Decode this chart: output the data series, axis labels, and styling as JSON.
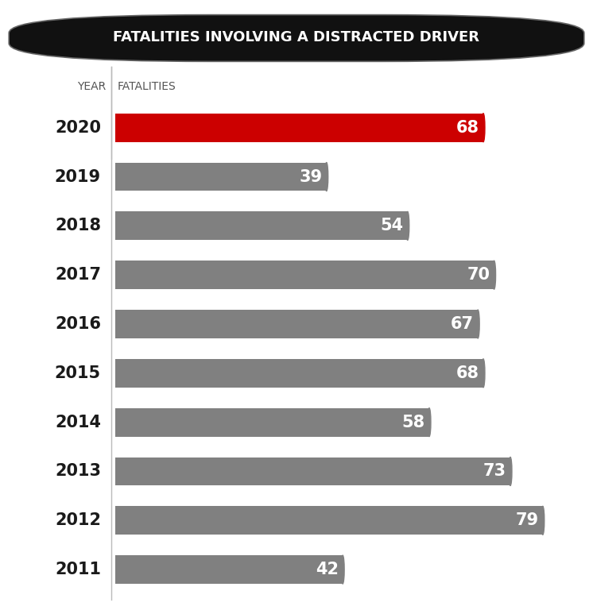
{
  "title": "FATALITIES INVOLVING A DISTRACTED DRIVER",
  "col_year": "YEAR",
  "col_fatalities": "FATALITIES",
  "years": [
    "2020",
    "2019",
    "2018",
    "2017",
    "2016",
    "2015",
    "2014",
    "2013",
    "2012",
    "2011"
  ],
  "values": [
    68,
    39,
    54,
    70,
    67,
    68,
    58,
    73,
    79,
    42
  ],
  "bar_colors": [
    "#cc0000",
    "#808080",
    "#808080",
    "#808080",
    "#808080",
    "#808080",
    "#808080",
    "#808080",
    "#808080",
    "#808080"
  ],
  "max_value": 85,
  "background_color": "#ffffff",
  "title_bg_color": "#111111",
  "title_text_color": "#ffffff",
  "label_text_color": "#ffffff",
  "year_label_color": "#1a1a1a",
  "header_color": "#555555",
  "bar_height": 0.58,
  "figsize": [
    7.46,
    7.68
  ],
  "dpi": 100
}
